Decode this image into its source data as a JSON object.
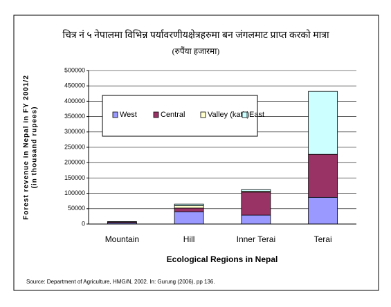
{
  "chart_data": {
    "type": "stacked_bar",
    "title": "चित्र नं ५ नेपालमा विभिन्न पर्यावरणीयक्षेत्रहरुमा बन जंगलमाट प्राप्त करको मात्रा",
    "subtitle": "(रुपैंया हजारमा)",
    "x_label": "Ecological Regions in Nepal",
    "y_label": [
      "Forest revenue in Nepal in FY 2001/2",
      "(in thousand rupees)"
    ],
    "source": "Source: Department of Agriculture, HMG/N, 2002. In: Gurung  (2006), pp 136.",
    "categories": [
      "Mountain",
      "Hill",
      "Inner Terai",
      "Terai"
    ],
    "series": [
      {
        "name": "West",
        "color": "#9999ff",
        "values": [
          4000,
          40000,
          29000,
          87000
        ]
      },
      {
        "name": "Central",
        "color": "#993366",
        "values": [
          3000,
          12000,
          75000,
          140000
        ]
      },
      {
        "name": "Valley (kath)",
        "color": "#ffffcc",
        "values": [
          0,
          8000,
          3000,
          0
        ]
      },
      {
        "name": "East",
        "color": "#ccffff",
        "values": [
          1000,
          5000,
          5000,
          205000
        ]
      }
    ],
    "ylim": [
      0,
      500000
    ],
    "yticks": [
      0,
      50000,
      100000,
      150000,
      200000,
      250000,
      300000,
      350000,
      400000,
      450000,
      500000
    ],
    "grid": true
  }
}
